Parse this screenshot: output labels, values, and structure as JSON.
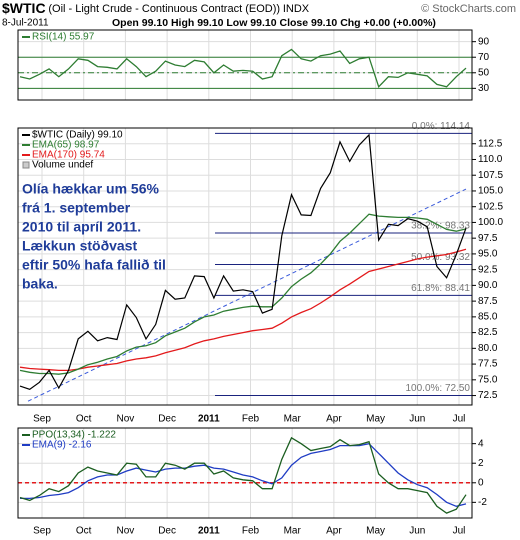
{
  "header": {
    "symbol": "$WTIC",
    "title": "(Oil - Light Crude - Continuous Contract (EOD))",
    "exchange": "INDX",
    "credit": "© StockCharts.com",
    "date": "8-Jul-2011",
    "quote": "Open 99.10  High 99.10  Low 99.10  Close 99.10  Chg +0.00 (+0.00%)"
  },
  "chart_data": [
    {
      "type": "line",
      "ylim": [
        15,
        105
      ],
      "yticks": [
        30,
        50,
        70,
        90
      ],
      "grid": true,
      "levels": [
        {
          "value": 70,
          "color": "#2e7d32"
        },
        {
          "value": 50,
          "color": "#2e7d32",
          "dash": true
        },
        {
          "value": 30,
          "color": "#2e7d32"
        }
      ],
      "series": [
        {
          "name": "RSI(14) 55.97",
          "color": "#2e7d32",
          "values": [
            45,
            42,
            48,
            55,
            45,
            55,
            68,
            66,
            58,
            57,
            55,
            68,
            58,
            45,
            52,
            65,
            60,
            58,
            66,
            64,
            50,
            60,
            52,
            53,
            52,
            42,
            45,
            72,
            80,
            68,
            65,
            72,
            74,
            78,
            62,
            68,
            70,
            32,
            45,
            44,
            50,
            48,
            46,
            35,
            32,
            45,
            55.97
          ]
        }
      ]
    },
    {
      "type": "line",
      "ylim": [
        71,
        115
      ],
      "yticks": [
        72.5,
        {
          "value": 75,
          "label": "75.0"
        },
        77.5,
        {
          "value": 80,
          "label": "80.0"
        },
        82.5,
        {
          "value": 85,
          "label": "85.0"
        },
        87.5,
        {
          "value": 90,
          "label": "90.0"
        },
        92.5,
        {
          "value": 95,
          "label": "95.0"
        },
        97.5,
        {
          "value": 100,
          "label": "100.0"
        },
        102.5,
        {
          "value": 105,
          "label": "105.0"
        },
        107.5,
        {
          "value": 110,
          "label": "110.0"
        },
        112.5
      ],
      "grid": true,
      "xlabels": [
        "Sep",
        "Oct",
        "Nov",
        "Dec",
        "2011",
        "Feb",
        "Mar",
        "Apr",
        "May",
        "Jun",
        "Jul"
      ],
      "series": [
        {
          "name": "$WTIC (Daily) 99.10",
          "color": "#000000",
          "values": [
            74,
            73.5,
            74.6,
            76.5,
            73.7,
            76.5,
            81.5,
            82.7,
            81.2,
            81.7,
            81.4,
            86.9,
            84.9,
            81.5,
            83.8,
            89.2,
            87.8,
            88,
            91.5,
            91.4,
            88,
            91.5,
            89.1,
            89.3,
            89,
            85.6,
            86.2,
            97.9,
            104.4,
            101.2,
            101.1,
            105.4,
            107.9,
            112.8,
            109.7,
            112.3,
            113.9,
            97.2,
            99.7,
            99.5,
            100.6,
            100.2,
            99.3,
            93,
            91.2,
            94.9,
            99.1
          ]
        },
        {
          "name": "EMA(65) 98.97",
          "color": "#2e7d32",
          "values": [
            76.5,
            76.2,
            76,
            76,
            75.9,
            76.1,
            76.7,
            77.4,
            77.8,
            78.3,
            78.7,
            79.6,
            80.2,
            80.4,
            80.9,
            82,
            82.6,
            83.2,
            84.2,
            85,
            85.3,
            85.9,
            86.2,
            86.5,
            86.7,
            86.6,
            86.6,
            88,
            89.8,
            91,
            92,
            93.4,
            95,
            97,
            98.3,
            99.8,
            101.3,
            101,
            100.9,
            100.8,
            100.8,
            100.7,
            100.5,
            99.7,
            98.9,
            98.6,
            98.97
          ]
        },
        {
          "name": "EMA(170) 95.74",
          "color": "#e31a1c",
          "values": [
            77,
            76.8,
            76.7,
            76.6,
            76.5,
            76.5,
            76.7,
            77,
            77.2,
            77.4,
            77.6,
            78,
            78.3,
            78.5,
            78.8,
            79.3,
            79.7,
            80.1,
            80.7,
            81.2,
            81.5,
            81.9,
            82.2,
            82.5,
            82.8,
            83,
            83.2,
            84,
            85,
            85.7,
            86.3,
            87.2,
            88.2,
            89.3,
            90.2,
            91.2,
            92.2,
            92.6,
            93,
            93.4,
            93.8,
            94.2,
            94.5,
            94.7,
            94.9,
            95.3,
            95.74
          ]
        }
      ],
      "legend_extra": "Volume undef",
      "fib": [
        {
          "label": "0.0%: 114.14",
          "value": 114.14
        },
        {
          "label": "38.2%: 98.33",
          "value": 98.33
        },
        {
          "label": "50.0%: 93.32",
          "value": 93.32
        },
        {
          "label": "61.8%: 88.41",
          "value": 88.41
        },
        {
          "label": "100.0%: 72.50",
          "value": 72.5
        }
      ],
      "trendline": [
        71.6,
        105.3
      ],
      "annotation": [
        "Olía hækkar um 56%",
        "frá 1. september",
        "2010 til apríl 2011.",
        "Lækkun stöðvast",
        "eftir 50% hafa fallið til",
        "baka."
      ]
    },
    {
      "type": "line",
      "ylim": [
        -3.6,
        5.6
      ],
      "yticks": [
        -2,
        0,
        2,
        4
      ],
      "grid": true,
      "xlabels": [
        "Sep",
        "Oct",
        "Nov",
        "Dec",
        "2011",
        "Feb",
        "Mar",
        "Apr",
        "May",
        "Jun",
        "Jul"
      ],
      "zero": 0,
      "series": [
        {
          "name": "PPO(13,34) -1.222",
          "color": "#1b5e20",
          "values": [
            -1.5,
            -1.8,
            -1.3,
            -0.6,
            -0.9,
            -0.3,
            1,
            1.6,
            1.2,
            1,
            0.8,
            2,
            1.9,
            0.6,
            0.6,
            2,
            1.8,
            1.4,
            2,
            2,
            0.9,
            1.2,
            0.5,
            0.3,
            0.2,
            -0.6,
            -0.6,
            2.4,
            4.6,
            4,
            3.3,
            3.5,
            3.7,
            4.4,
            3.8,
            3.9,
            4.2,
            0.9,
            0,
            -0.6,
            -0.6,
            -0.8,
            -1,
            -2.4,
            -3.1,
            -2.7,
            -1.222
          ]
        },
        {
          "name": "EMA(9) -2.16",
          "color": "#1f3cc4",
          "values": [
            -1.6,
            -1.6,
            -1.5,
            -1.3,
            -1.2,
            -1,
            -0.5,
            0.2,
            0.6,
            0.8,
            0.8,
            1.2,
            1.5,
            1.3,
            1.1,
            1.4,
            1.5,
            1.5,
            1.7,
            1.8,
            1.5,
            1.4,
            1.1,
            0.8,
            0.6,
            0.2,
            -0.1,
            0.5,
            1.8,
            2.6,
            3,
            3.2,
            3.4,
            3.8,
            3.8,
            3.8,
            4,
            3,
            2,
            1,
            0.3,
            -0.2,
            -0.5,
            -1.2,
            -2,
            -2.4,
            -2.16
          ]
        }
      ]
    }
  ]
}
